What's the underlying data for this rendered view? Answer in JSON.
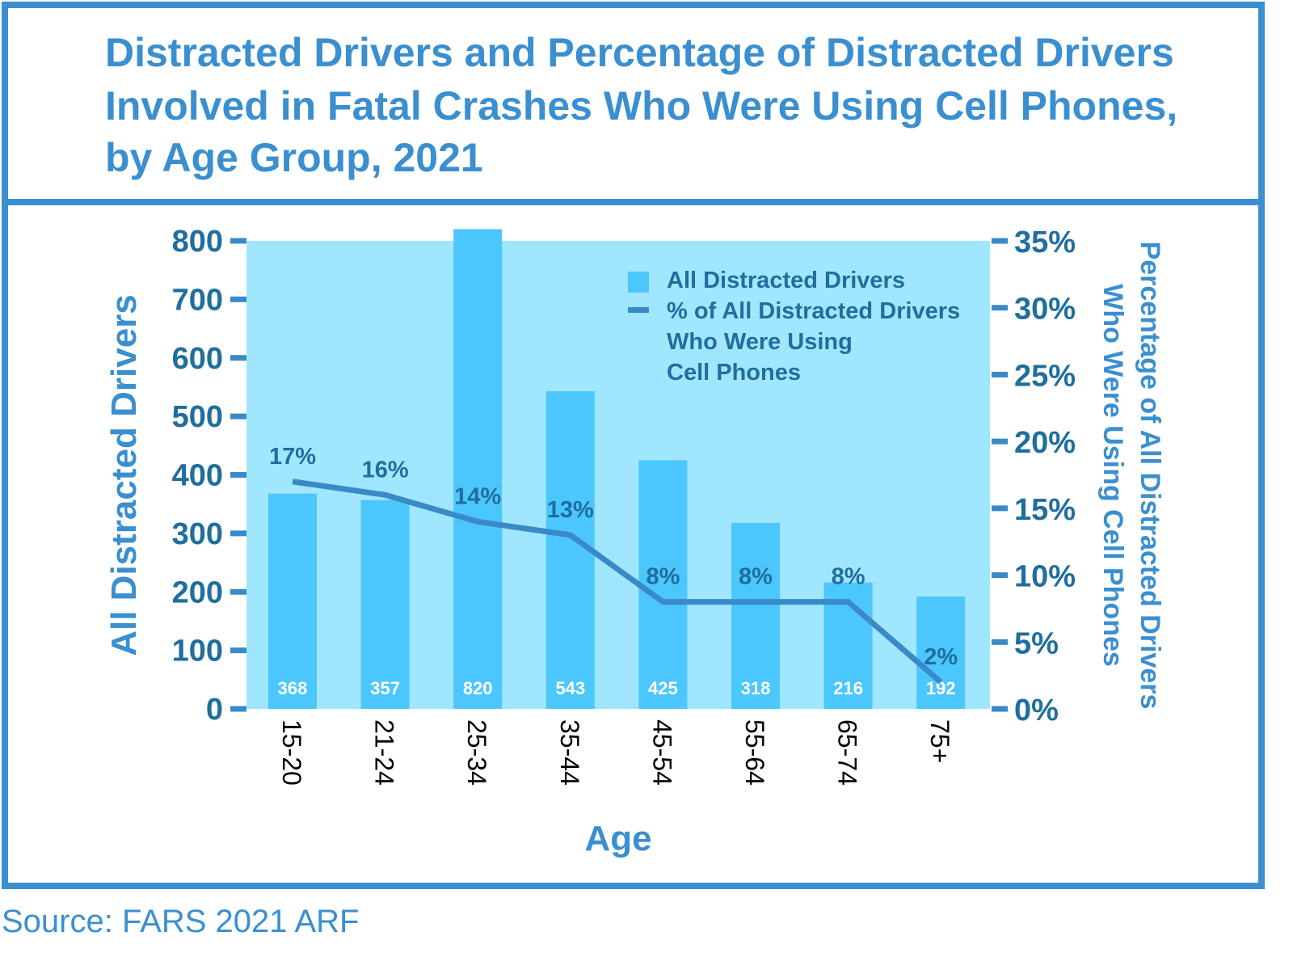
{
  "chart_data": {
    "type": "bar+line",
    "title_lines": [
      "Distracted Drivers and Percentage of Distracted Drivers",
      "Involved in Fatal Crashes Who Were Using Cell Phones,",
      "by Age Group,  2021"
    ],
    "xlabel": "Age",
    "ylabel": "All Distracted Drivers",
    "y2label_lines": [
      "Percentage of All Distracted Drivers",
      "Who Were Using Cell Phones"
    ],
    "categories": [
      "15-20",
      "21-24",
      "25-34",
      "35-44",
      "45-54",
      "55-64",
      "65-74",
      "75+"
    ],
    "series": [
      {
        "name": "All Distracted Drivers",
        "type": "bar",
        "axis": "left",
        "values": [
          368,
          357,
          820,
          543,
          425,
          318,
          216,
          192
        ],
        "labels": [
          "368",
          "357",
          "820",
          "543",
          "425",
          "318",
          "216",
          "192"
        ]
      },
      {
        "name": "% of All Distracted Drivers Who Were Using Cell Phones",
        "type": "line",
        "axis": "right",
        "values": [
          17,
          16,
          14,
          13,
          8,
          8,
          8,
          2
        ],
        "labels": [
          "17%",
          "16%",
          "14%",
          "13%",
          "8%",
          "8%",
          "8%",
          "2%"
        ]
      }
    ],
    "ylim": [
      0,
      800
    ],
    "yticks": [
      "0",
      "100",
      "200",
      "300",
      "400",
      "500",
      "600",
      "700",
      "800"
    ],
    "y2lim": [
      0,
      35
    ],
    "y2ticks": [
      "0%",
      "5%",
      "10%",
      "15%",
      "20%",
      "25%",
      "30%",
      "35%"
    ],
    "legend": {
      "placement": "top-right",
      "bar_label": "All Distracted Drivers",
      "line_label_lines": [
        "% of All Distracted Drivers",
        "Who Were Using",
        "Cell Phones"
      ]
    },
    "grid": false,
    "colors": {
      "plot_bg": "#a0e6fe",
      "bar": "#4cc7fe",
      "line": "#3a8ac8",
      "frame": "#3a8fd0",
      "tick_text": "#1f6e9e"
    }
  },
  "source": "Source:  FARS 2021 ARF"
}
